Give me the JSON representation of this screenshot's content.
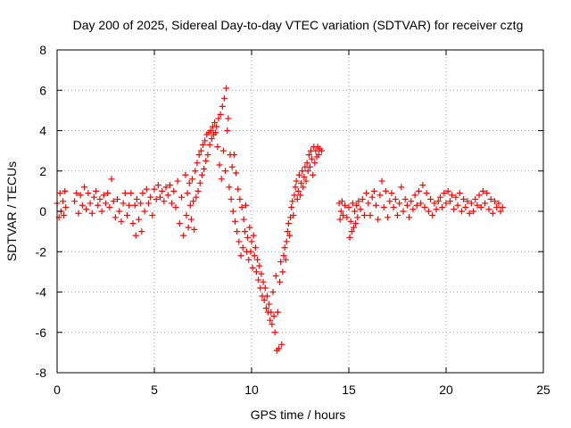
{
  "chart_data": {
    "type": "scatter",
    "title": "Day 200 of 2025, Sidereal Day-to-day VTEC variation (SDTVAR) for receiver cztg",
    "xlabel": "GPS time / hours",
    "ylabel": "SDTVAR / TECUs",
    "xlim": [
      0,
      25
    ],
    "ylim": [
      -8,
      8
    ],
    "xticks": [
      0,
      5,
      10,
      15,
      20,
      25
    ],
    "yticks": [
      -8,
      -6,
      -4,
      -2,
      0,
      2,
      4,
      6,
      8
    ],
    "grid": true,
    "marker": "+",
    "color": "#ff0000",
    "series": [
      {
        "name": "SDTVAR",
        "points": [
          [
            0.0,
            0.4
          ],
          [
            0.1,
            -0.3
          ],
          [
            0.15,
            0.9
          ],
          [
            0.2,
            0.0
          ],
          [
            0.3,
            0.5
          ],
          [
            0.35,
            -0.2
          ],
          [
            0.4,
            1.0
          ],
          [
            0.45,
            0.2
          ],
          [
            0.9,
            0.5
          ],
          [
            1.0,
            0.9
          ],
          [
            1.1,
            -0.1
          ],
          [
            1.2,
            0.8
          ],
          [
            1.3,
            0.3
          ],
          [
            1.4,
            1.2
          ],
          [
            1.5,
            0.1
          ],
          [
            1.6,
            0.9
          ],
          [
            1.7,
            0.4
          ],
          [
            1.8,
            -0.1
          ],
          [
            1.9,
            0.7
          ],
          [
            2.0,
            1.0
          ],
          [
            2.1,
            0.3
          ],
          [
            2.2,
            0.6
          ],
          [
            2.3,
            0.0
          ],
          [
            2.4,
            0.8
          ],
          [
            2.5,
            0.4
          ],
          [
            2.6,
            0.9
          ],
          [
            2.7,
            0.2
          ],
          [
            2.8,
            1.6
          ],
          [
            2.9,
            0.5
          ],
          [
            3.0,
            -0.3
          ],
          [
            3.1,
            0.6
          ],
          [
            3.2,
            0.0
          ],
          [
            3.3,
            -0.5
          ],
          [
            3.4,
            0.4
          ],
          [
            3.5,
            0.9
          ],
          [
            3.6,
            -0.2
          ],
          [
            3.7,
            0.3
          ],
          [
            3.8,
            0.9
          ],
          [
            3.9,
            -0.6
          ],
          [
            4.0,
            0.3
          ],
          [
            4.05,
            -1.2
          ],
          [
            4.1,
            0.6
          ],
          [
            4.2,
            -0.4
          ],
          [
            4.3,
            0.4
          ],
          [
            4.35,
            -1.0
          ],
          [
            4.4,
            0.9
          ],
          [
            4.5,
            0.0
          ],
          [
            4.6,
            1.1
          ],
          [
            4.7,
            0.4
          ],
          [
            4.8,
            0.7
          ],
          [
            4.9,
            -0.2
          ],
          [
            5.0,
            1.1
          ],
          [
            5.1,
            0.6
          ],
          [
            5.2,
            1.3
          ],
          [
            5.3,
            0.7
          ],
          [
            5.4,
            1.0
          ],
          [
            5.5,
            0.5
          ],
          [
            5.6,
            1.2
          ],
          [
            5.7,
            0.8
          ],
          [
            5.8,
            1.3
          ],
          [
            5.9,
            0.4
          ],
          [
            6.0,
            1.0
          ],
          [
            6.1,
            0.2
          ],
          [
            6.2,
            1.5
          ],
          [
            6.3,
            -0.6
          ],
          [
            6.4,
            0.7
          ],
          [
            6.5,
            -1.2
          ],
          [
            6.6,
            1.8
          ],
          [
            6.65,
            -0.2
          ],
          [
            6.7,
            0.9
          ],
          [
            6.75,
            -0.8
          ],
          [
            6.8,
            1.4
          ],
          [
            6.85,
            0.3
          ],
          [
            6.9,
            -0.4
          ],
          [
            6.95,
            1.6
          ],
          [
            7.0,
            0.5
          ],
          [
            7.05,
            -0.9
          ],
          [
            7.1,
            2.0
          ],
          [
            7.15,
            0.7
          ],
          [
            7.2,
            2.4
          ],
          [
            7.25,
            1.0
          ],
          [
            7.3,
            2.8
          ],
          [
            7.35,
            1.4
          ],
          [
            7.4,
            3.0
          ],
          [
            7.45,
            1.8
          ],
          [
            7.5,
            3.3
          ],
          [
            7.55,
            2.1
          ],
          [
            7.6,
            3.5
          ],
          [
            7.65,
            2.5
          ],
          [
            7.7,
            3.8
          ],
          [
            7.75,
            2.8
          ],
          [
            7.8,
            3.9
          ],
          [
            7.85,
            3.3
          ],
          [
            7.9,
            4.0
          ],
          [
            7.95,
            3.6
          ],
          [
            8.0,
            4.2
          ],
          [
            8.05,
            3.8
          ],
          [
            8.1,
            4.4
          ],
          [
            8.15,
            3.9
          ],
          [
            8.2,
            4.2
          ],
          [
            8.25,
            3.2
          ],
          [
            8.3,
            4.6
          ],
          [
            8.35,
            2.3
          ],
          [
            8.4,
            4.8
          ],
          [
            8.45,
            1.6
          ],
          [
            8.5,
            5.2
          ],
          [
            8.55,
            3.0
          ],
          [
            8.6,
            5.6
          ],
          [
            8.65,
            2.0
          ],
          [
            8.7,
            6.1
          ],
          [
            8.75,
            4.0
          ],
          [
            8.8,
            4.6
          ],
          [
            8.85,
            1.2
          ],
          [
            8.9,
            2.8
          ],
          [
            8.95,
            0.6
          ],
          [
            9.0,
            2.2
          ],
          [
            9.05,
            0.0
          ],
          [
            9.1,
            2.8
          ],
          [
            9.15,
            -0.5
          ],
          [
            9.2,
            1.9
          ],
          [
            9.25,
            -1.0
          ],
          [
            9.3,
            1.1
          ],
          [
            9.35,
            -1.5
          ],
          [
            9.4,
            0.6
          ],
          [
            9.45,
            -2.2
          ],
          [
            9.5,
            0.2
          ],
          [
            9.55,
            -1.8
          ],
          [
            9.6,
            -0.4
          ],
          [
            9.65,
            -1.0
          ],
          [
            9.7,
            0.3
          ],
          [
            9.75,
            -2.0
          ],
          [
            9.8,
            -1.3
          ],
          [
            9.85,
            -2.4
          ],
          [
            9.9,
            -0.8
          ],
          [
            9.95,
            -2.0
          ],
          [
            10.0,
            -1.5
          ],
          [
            10.05,
            -2.8
          ],
          [
            10.1,
            -1.2
          ],
          [
            10.15,
            -2.2
          ],
          [
            10.2,
            -1.8
          ],
          [
            10.25,
            -3.0
          ],
          [
            10.3,
            -2.4
          ],
          [
            10.35,
            -3.4
          ],
          [
            10.4,
            -2.7
          ],
          [
            10.45,
            -3.8
          ],
          [
            10.5,
            -3.1
          ],
          [
            10.55,
            -4.2
          ],
          [
            10.6,
            -3.5
          ],
          [
            10.65,
            -4.4
          ],
          [
            10.7,
            -3.8
          ],
          [
            10.75,
            -4.8
          ],
          [
            10.8,
            -4.2
          ],
          [
            10.85,
            -5.0
          ],
          [
            10.9,
            -4.6
          ],
          [
            10.95,
            -5.4
          ],
          [
            11.0,
            -5.0
          ],
          [
            11.05,
            -5.6
          ],
          [
            11.1,
            -4.0
          ],
          [
            11.15,
            -5.2
          ],
          [
            11.2,
            -6.0
          ],
          [
            11.25,
            -3.2
          ],
          [
            11.3,
            -6.9
          ],
          [
            11.35,
            -5.0
          ],
          [
            11.4,
            -6.8
          ],
          [
            11.45,
            -3.5
          ],
          [
            11.5,
            -2.5
          ],
          [
            11.55,
            -6.6
          ],
          [
            11.6,
            -3.0
          ],
          [
            11.65,
            -2.2
          ],
          [
            11.7,
            -1.8
          ],
          [
            11.75,
            -2.4
          ],
          [
            11.8,
            -1.5
          ],
          [
            11.85,
            -1.0
          ],
          [
            11.9,
            -0.6
          ],
          [
            11.95,
            -1.2
          ],
          [
            12.0,
            -0.3
          ],
          [
            12.05,
            0.2
          ],
          [
            12.1,
            0.5
          ],
          [
            12.15,
            -0.2
          ],
          [
            12.2,
            0.8
          ],
          [
            12.25,
            1.2
          ],
          [
            12.3,
            1.5
          ],
          [
            12.35,
            0.6
          ],
          [
            12.4,
            1.0
          ],
          [
            12.45,
            1.8
          ],
          [
            12.5,
            0.8
          ],
          [
            12.55,
            1.4
          ],
          [
            12.6,
            2.0
          ],
          [
            12.65,
            1.2
          ],
          [
            12.7,
            1.7
          ],
          [
            12.75,
            2.2
          ],
          [
            12.8,
            1.5
          ],
          [
            12.85,
            2.4
          ],
          [
            12.9,
            2.0
          ],
          [
            12.95,
            2.8
          ],
          [
            13.0,
            2.2
          ],
          [
            13.05,
            3.0
          ],
          [
            13.1,
            2.6
          ],
          [
            13.15,
            1.8
          ],
          [
            13.2,
            3.2
          ],
          [
            13.25,
            2.4
          ],
          [
            13.3,
            3.0
          ],
          [
            13.35,
            2.7
          ],
          [
            13.4,
            3.2
          ],
          [
            13.45,
            2.8
          ],
          [
            13.5,
            3.1
          ],
          [
            13.6,
            3.0
          ],
          [
            14.5,
            0.4
          ],
          [
            14.55,
            -0.4
          ],
          [
            14.6,
            0.0
          ],
          [
            14.65,
            0.5
          ],
          [
            14.7,
            -0.2
          ],
          [
            14.8,
            0.3
          ],
          [
            14.9,
            -0.3
          ],
          [
            15.0,
            0.2
          ],
          [
            15.05,
            -1.3
          ],
          [
            15.1,
            -0.5
          ],
          [
            15.15,
            -1.0
          ],
          [
            15.2,
            0.4
          ],
          [
            15.25,
            -0.8
          ],
          [
            15.3,
            0.0
          ],
          [
            15.35,
            -0.6
          ],
          [
            15.4,
            0.3
          ],
          [
            15.45,
            -0.3
          ],
          [
            15.5,
            0.5
          ],
          [
            15.6,
            0.1
          ],
          [
            15.7,
            0.6
          ],
          [
            15.8,
            -0.2
          ],
          [
            15.9,
            0.9
          ],
          [
            16.0,
            0.4
          ],
          [
            16.1,
            -0.2
          ],
          [
            16.2,
            0.7
          ],
          [
            16.3,
            1.0
          ],
          [
            16.4,
            0.3
          ],
          [
            16.5,
            -0.4
          ],
          [
            16.6,
            0.8
          ],
          [
            16.7,
            1.5
          ],
          [
            16.8,
            0.2
          ],
          [
            16.9,
            1.0
          ],
          [
            17.0,
            -0.3
          ],
          [
            17.1,
            0.5
          ],
          [
            17.2,
            0.9
          ],
          [
            17.3,
            0.2
          ],
          [
            17.4,
            0.6
          ],
          [
            17.5,
            -0.2
          ],
          [
            17.6,
            0.4
          ],
          [
            17.7,
            1.2
          ],
          [
            17.8,
            0.0
          ],
          [
            17.9,
            0.6
          ],
          [
            18.0,
            0.3
          ],
          [
            18.1,
            -0.3
          ],
          [
            18.2,
            0.5
          ],
          [
            18.3,
            0.1
          ],
          [
            18.4,
            0.8
          ],
          [
            18.5,
            0.3
          ],
          [
            18.6,
            1.0
          ],
          [
            18.7,
            0.4
          ],
          [
            18.8,
            1.3
          ],
          [
            18.9,
            0.2
          ],
          [
            19.0,
            0.9
          ],
          [
            19.1,
            0.0
          ],
          [
            19.2,
            0.6
          ],
          [
            19.3,
            -0.2
          ],
          [
            19.4,
            0.4
          ],
          [
            19.5,
            0.1
          ],
          [
            19.6,
            0.5
          ],
          [
            19.7,
            0.7
          ],
          [
            19.8,
            0.2
          ],
          [
            19.9,
            0.9
          ],
          [
            20.0,
            0.4
          ],
          [
            20.1,
            1.0
          ],
          [
            20.2,
            0.5
          ],
          [
            20.3,
            0.8
          ],
          [
            20.4,
            0.1
          ],
          [
            20.5,
            0.7
          ],
          [
            20.6,
            0.3
          ],
          [
            20.7,
            0.9
          ],
          [
            20.8,
            0.0
          ],
          [
            20.9,
            0.6
          ],
          [
            21.0,
            0.2
          ],
          [
            21.1,
            0.5
          ],
          [
            21.2,
            -0.1
          ],
          [
            21.3,
            0.4
          ],
          [
            21.4,
            0.0
          ],
          [
            21.5,
            0.6
          ],
          [
            21.6,
            0.3
          ],
          [
            21.7,
            0.8
          ],
          [
            21.8,
            0.2
          ],
          [
            21.9,
            1.0
          ],
          [
            22.0,
            0.4
          ],
          [
            22.1,
            0.9
          ],
          [
            22.2,
            0.1
          ],
          [
            22.3,
            0.6
          ],
          [
            22.4,
            -0.1
          ],
          [
            22.5,
            0.5
          ],
          [
            22.6,
            0.2
          ],
          [
            22.7,
            0.4
          ],
          [
            22.8,
            0.0
          ],
          [
            22.9,
            0.2
          ]
        ]
      }
    ]
  }
}
